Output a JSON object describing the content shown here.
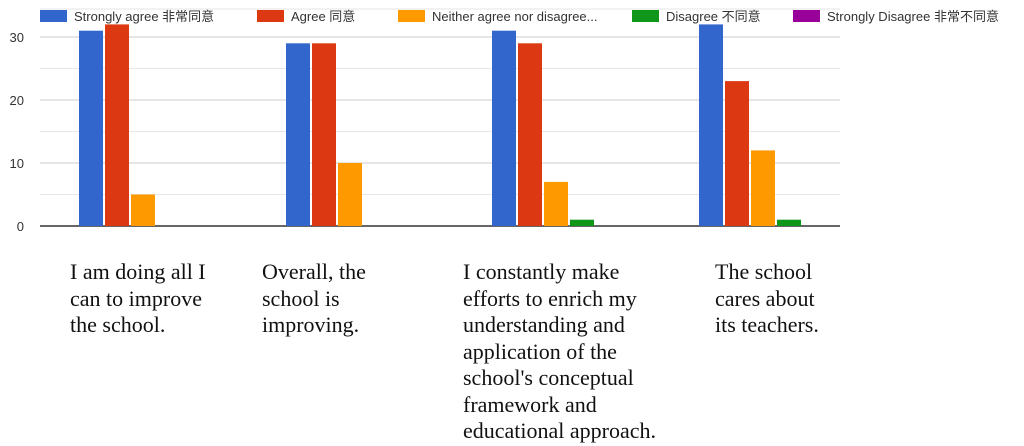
{
  "chart_data": {
    "type": "bar",
    "categories": [
      "I am doing all I\ncan to improve\nthe school.",
      "Overall, the\nschool is\nimproving.",
      "I constantly make\nefforts to enrich my\nunderstanding and\napplication of the\nschool's conceptual\nframework and\neducational approach.",
      "The school\ncares about\nits teachers."
    ],
    "series": [
      {
        "name": "Strongly agree 非常同意",
        "color": "#3366cc",
        "values": [
          31,
          29,
          31,
          32
        ]
      },
      {
        "name": "Agree 同意",
        "color": "#dc3912",
        "values": [
          32,
          29,
          29,
          23
        ]
      },
      {
        "name": "Neither agree nor disagree...",
        "color": "#ff9900",
        "values": [
          5,
          10,
          7,
          12
        ]
      },
      {
        "name": "Disagree 不同意",
        "color": "#109618",
        "values": [
          0,
          0,
          1,
          1
        ]
      },
      {
        "name": "Strongly Disagree 非常不同意",
        "color": "#990099",
        "values": [
          0,
          0,
          0,
          0
        ]
      }
    ],
    "yticks": [
      "0",
      "10",
      "20",
      "30"
    ],
    "ylim": [
      0,
      33
    ],
    "grid": true,
    "legend_position": "top"
  }
}
